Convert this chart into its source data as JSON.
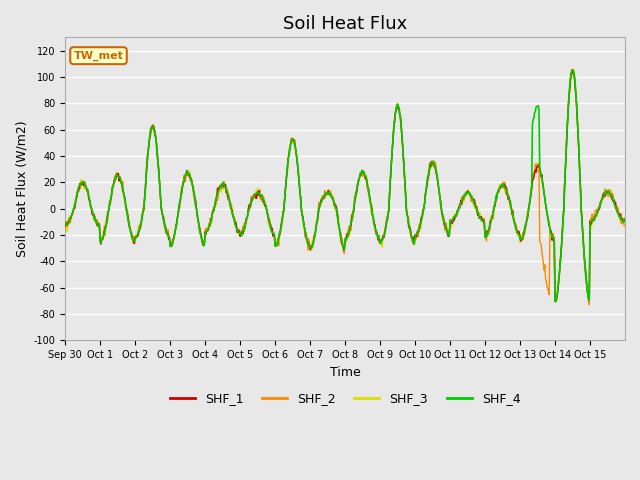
{
  "title": "Soil Heat Flux",
  "ylabel": "Soil Heat Flux (W/m2)",
  "xlabel": "Time",
  "ylim": [
    -100,
    130
  ],
  "yticks": [
    -100,
    -80,
    -60,
    -40,
    -20,
    0,
    20,
    40,
    60,
    80,
    100,
    120
  ],
  "background_color": "#e8e8e8",
  "plot_bg_color": "#e8e8e8",
  "grid_color": "#ffffff",
  "series_colors": {
    "SHF_1": "#cc0000",
    "SHF_2": "#ff8800",
    "SHF_3": "#dddd00",
    "SHF_4": "#00cc00"
  },
  "series_linewidths": {
    "SHF_1": 1.0,
    "SHF_2": 1.0,
    "SHF_3": 1.0,
    "SHF_4": 1.2
  },
  "legend_label": "TW_met",
  "legend_box_color": "#ffffcc",
  "legend_box_edge": "#cc6600",
  "num_days": 16,
  "x_tick_positions": [
    0,
    1,
    2,
    3,
    4,
    5,
    6,
    7,
    8,
    9,
    10,
    11,
    12,
    13,
    14,
    15
  ],
  "x_tick_labels": [
    "Sep 30",
    "Oct 1",
    "Oct 2",
    "Oct 3",
    "Oct 4",
    "Oct 5",
    "Oct 6",
    "Oct 7",
    "Oct 8",
    "Oct 9",
    "Oct 10",
    "Oct 11",
    "Oct 12",
    "Oct 13",
    "Oct 14",
    "Oct 15"
  ],
  "title_fontsize": 13,
  "axis_label_fontsize": 9,
  "tick_fontsize": 7,
  "day_amps": [
    20,
    25,
    62,
    27,
    18,
    12,
    52,
    12,
    28,
    78,
    35,
    12,
    18,
    32,
    105,
    13
  ],
  "night_amps": [
    13,
    25,
    22,
    28,
    18,
    20,
    28,
    30,
    23,
    26,
    20,
    10,
    20,
    24,
    70,
    10
  ]
}
